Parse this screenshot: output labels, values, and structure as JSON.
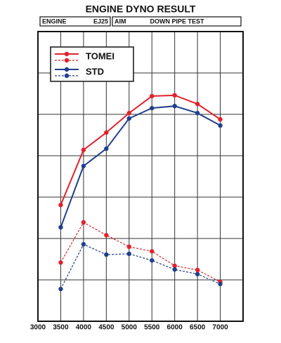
{
  "chart_data": {
    "type": "line",
    "title": "ENGINE DYNO RESULT",
    "engine_label": "ENGINE",
    "engine": "EJ25",
    "aim_label": "AIM",
    "aim": "DOWN PIPE TEST",
    "x": [
      3500,
      4000,
      4500,
      5000,
      5500,
      6000,
      6500,
      7000
    ],
    "xlim": [
      3000,
      7500
    ],
    "xticks": [
      3000,
      3500,
      4000,
      4500,
      5000,
      5500,
      6000,
      6500,
      7000
    ],
    "ylim": [
      0,
      7
    ],
    "ygrid": [
      1,
      2,
      3,
      4,
      5,
      6
    ],
    "legend": "upper left",
    "series": [
      {
        "name": "TOMEI",
        "color": "#e3202b",
        "solid": [
          2.81,
          4.14,
          4.56,
          5.03,
          5.44,
          5.46,
          5.25,
          4.88
        ],
        "dashed": [
          1.42,
          2.39,
          2.08,
          1.8,
          1.69,
          1.34,
          1.24,
          0.95
        ]
      },
      {
        "name": "STD",
        "color": "#1f3f8f",
        "solid": [
          2.27,
          3.75,
          4.17,
          4.9,
          5.15,
          5.2,
          5.03,
          4.73
        ],
        "dashed": [
          0.78,
          1.86,
          1.61,
          1.63,
          1.47,
          1.25,
          1.14,
          0.9
        ]
      }
    ]
  }
}
